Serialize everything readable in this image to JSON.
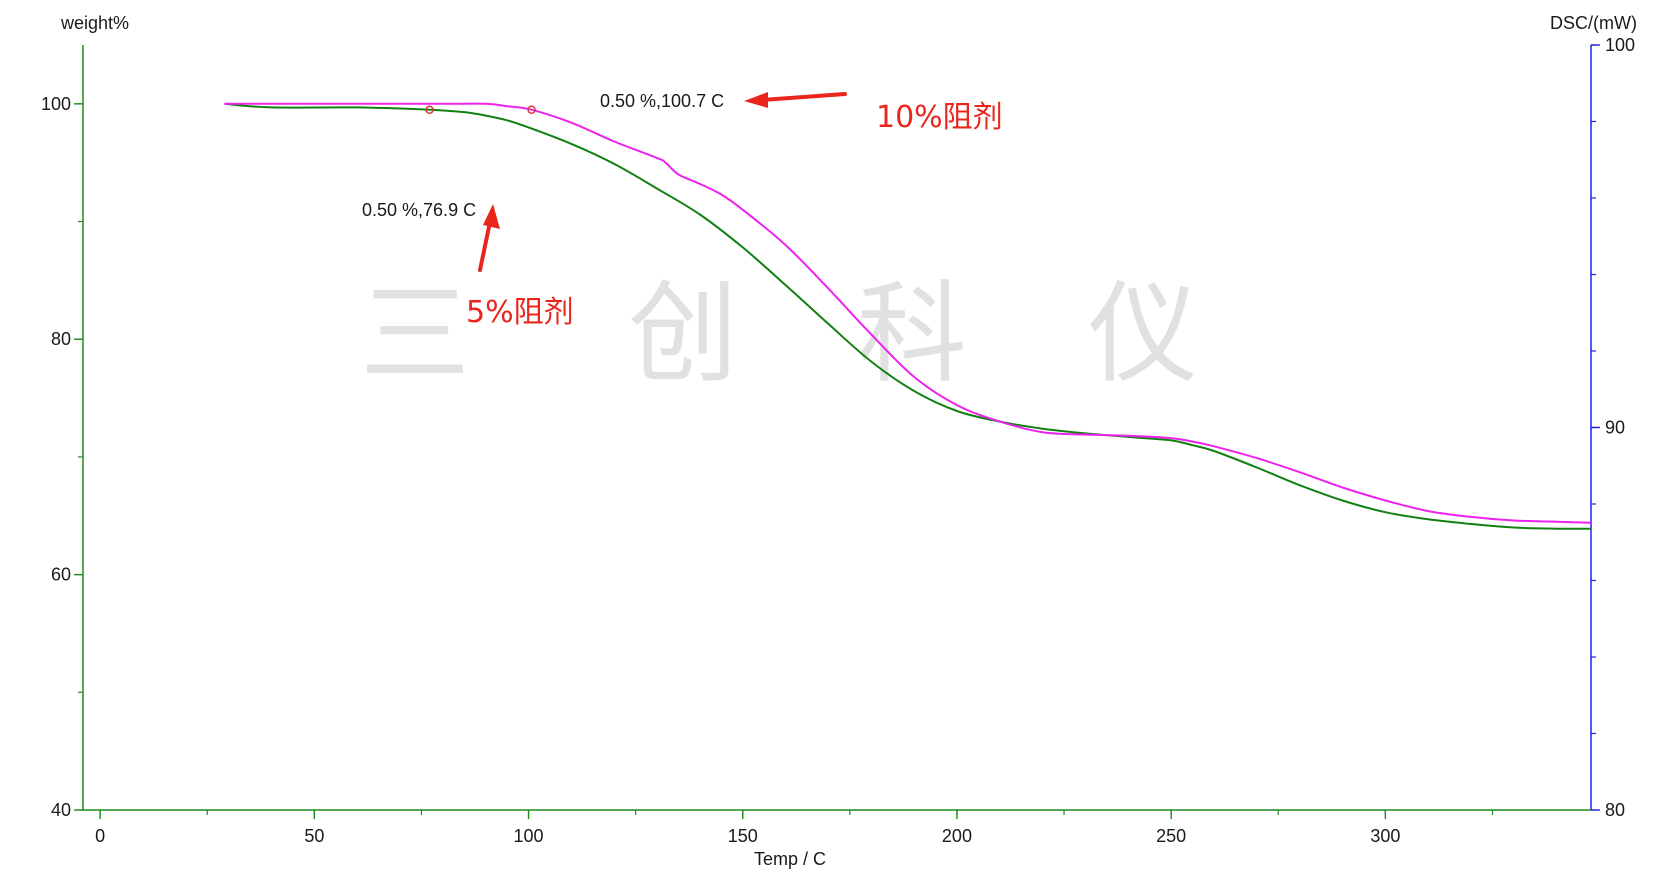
{
  "chart_data": {
    "type": "line",
    "x_axis": {
      "label": "Temp / C",
      "range": [
        -4,
        348
      ],
      "ticks": [
        0,
        50,
        100,
        150,
        200,
        250,
        300
      ],
      "minor_step": 25
    },
    "y_left": {
      "label": "weight%",
      "range": [
        40,
        105
      ],
      "ticks": [
        40,
        60,
        80,
        100
      ],
      "minor_step": 10
    },
    "y_right": {
      "label": "DSC/(mW)",
      "range": [
        80,
        100
      ],
      "ticks": [
        80,
        90,
        100
      ],
      "minor_step": 2
    },
    "colors": {
      "axis_left": "#1f8a1f",
      "axis_right": "#2020ee",
      "axis_bottom": "#1f8a1f",
      "series_5pct": "#128012",
      "series_10pct": "#ee22ee",
      "marker": "#d43a3a",
      "arrow": "#e8261c"
    },
    "series": [
      {
        "name": "5%阻剂",
        "color": "#128012",
        "x": [
          29,
          40,
          60,
          76.9,
          85,
          90,
          95,
          100,
          110,
          120,
          130,
          140,
          150,
          160,
          170,
          180,
          190,
          200,
          210,
          220,
          230,
          240,
          250,
          255,
          260,
          270,
          280,
          290,
          300,
          310,
          320,
          330,
          340,
          348
        ],
        "y": [
          100,
          99.7,
          99.7,
          99.5,
          99.3,
          99.0,
          98.6,
          98.0,
          96.6,
          94.9,
          92.8,
          90.6,
          87.8,
          84.6,
          81.3,
          78.1,
          75.6,
          73.9,
          73.0,
          72.4,
          72.0,
          71.7,
          71.4,
          71.0,
          70.5,
          69.1,
          67.6,
          66.3,
          65.3,
          64.7,
          64.3,
          64.0,
          63.9,
          63.9
        ]
      },
      {
        "name": "10%阻剂",
        "color": "#ee22ee",
        "x": [
          29,
          40,
          60,
          80,
          90,
          95,
          100.7,
          110,
          120,
          130,
          132,
          135,
          140,
          145,
          150,
          160,
          170,
          180,
          190,
          200,
          210,
          220,
          230,
          240,
          250,
          255,
          260,
          270,
          280,
          290,
          300,
          310,
          320,
          330,
          340,
          348
        ],
        "y": [
          100,
          100,
          100,
          100,
          100,
          99.8,
          99.5,
          98.4,
          96.8,
          95.4,
          95.0,
          94.0,
          93.2,
          92.3,
          91.0,
          88.0,
          84.3,
          80.4,
          76.8,
          74.4,
          73.0,
          72.1,
          71.9,
          71.8,
          71.6,
          71.3,
          70.9,
          69.9,
          68.7,
          67.4,
          66.3,
          65.4,
          64.9,
          64.6,
          64.5,
          64.4
        ]
      }
    ],
    "markers": [
      {
        "x": 76.9,
        "y": 99.5,
        "series": "5%阻剂"
      },
      {
        "x": 100.7,
        "y": 99.5,
        "series": "10%阻剂"
      }
    ],
    "annotations": [
      {
        "text": "0.50 %,100.7 C",
        "x": 100.7,
        "y": 99.5
      },
      {
        "text": "0.50 %,76.9 C",
        "x": 76.9,
        "y": 99.5
      }
    ],
    "callouts": [
      "10%阻剂",
      "5%阻剂"
    ],
    "watermark": [
      "三",
      "创",
      "科",
      "仪"
    ],
    "grid": false,
    "legend": "none"
  }
}
